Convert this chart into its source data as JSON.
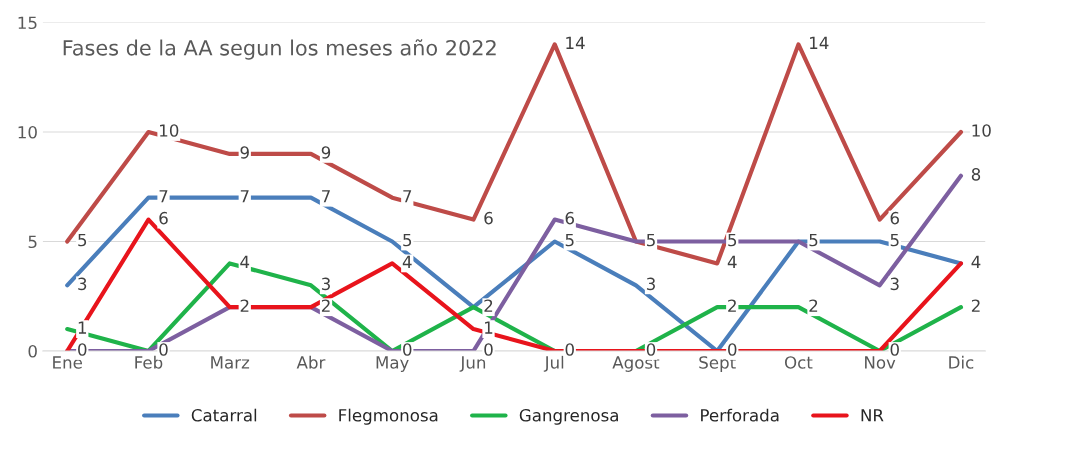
{
  "chart_data": {
    "type": "line",
    "title": "Fases de la AA segun los meses año 2022",
    "categories": [
      "Ene",
      "Feb",
      "Marz",
      "Abr",
      "May",
      "Jun",
      "Jul",
      "Agost",
      "Sept",
      "Oct",
      "Nov",
      "Dic"
    ],
    "series": [
      {
        "name": "Catarral",
        "color": "#4a7ebb",
        "values": [
          3,
          7,
          7,
          7,
          5,
          2,
          5,
          3,
          0,
          5,
          5,
          4
        ],
        "value_labels": [
          "3",
          "7",
          "7",
          "7",
          "5",
          "2",
          "5",
          "3",
          "0",
          "5",
          "5",
          "4"
        ]
      },
      {
        "name": "Flegmonosa",
        "color": "#be4b48",
        "values": [
          5,
          10,
          9,
          9,
          7,
          6,
          14,
          5,
          4,
          14,
          6,
          10
        ],
        "value_labels": [
          "5",
          "10",
          "9",
          "9",
          "7",
          "6",
          "14",
          "5",
          "4",
          "14",
          "6",
          "10"
        ]
      },
      {
        "name": "Gangrenosa",
        "color": "#1fb34a",
        "values": [
          1,
          0,
          4,
          3,
          0,
          2,
          0,
          0,
          2,
          2,
          0,
          2
        ],
        "value_labels": [
          "1",
          "0",
          "4",
          "3",
          "0",
          null,
          "0",
          "0",
          "2",
          "2",
          "0",
          "2"
        ]
      },
      {
        "name": "Perforada",
        "color": "#7d5fa0",
        "values": [
          0,
          0,
          2,
          2,
          0,
          0,
          6,
          5,
          5,
          5,
          3,
          8
        ],
        "value_labels": [
          "0",
          null,
          "2",
          "2",
          null,
          "0",
          "6",
          null,
          "5",
          null,
          "3",
          "8"
        ]
      },
      {
        "name": "NR",
        "color": "#e8141c",
        "values": [
          0,
          6,
          2,
          2,
          4,
          1,
          0,
          0,
          0,
          0,
          0,
          4
        ],
        "value_labels": [
          null,
          "6",
          null,
          null,
          "4",
          "1",
          null,
          null,
          null,
          null,
          null,
          null
        ]
      }
    ],
    "ylim": [
      0,
      15
    ],
    "yticks": [
      0,
      5,
      10,
      15
    ],
    "grid": "y",
    "legend": "bottom",
    "marker": "none",
    "line_style": "solid"
  }
}
